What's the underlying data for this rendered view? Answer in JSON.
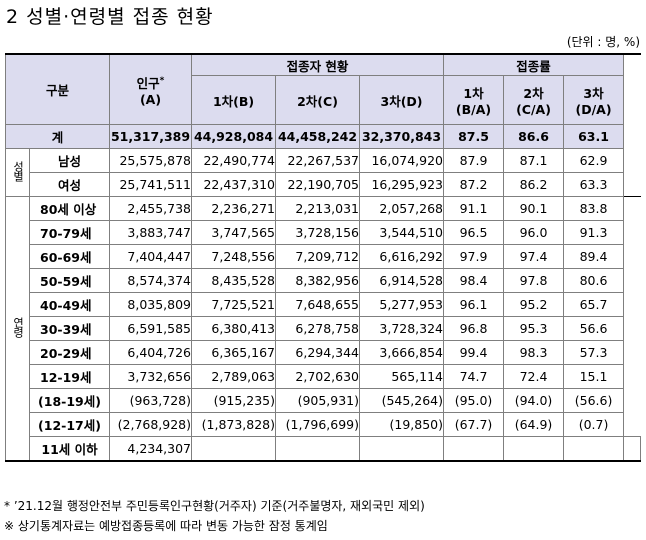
{
  "title": "2 성별·연령별 접종 현황",
  "unit": "(단위 : 명, %)",
  "headers": {
    "category": "구분",
    "population_line1": "인구",
    "population_sup": "*",
    "population_line2": "(A)",
    "vaccinated_group": "접종자 현황",
    "dose1": "1차(B)",
    "dose2": "2차(C)",
    "dose3": "3차(D)",
    "rate_group": "접종률",
    "rate1_line1": "1차",
    "rate1_line2": "(B/A)",
    "rate2_line1": "2차",
    "rate2_line2": "(C/A)",
    "rate3_line1": "3차",
    "rate3_line2": "(D/A)"
  },
  "groups": {
    "sex": "성별",
    "age": "연령"
  },
  "total": {
    "label": "계",
    "pop": "51,317,389",
    "d1": "44,928,084",
    "d2": "44,458,242",
    "d3": "32,370,843",
    "r1": "87.5",
    "r2": "86.6",
    "r3": "63.1"
  },
  "sex_rows": [
    {
      "label": "남성",
      "pop": "25,575,878",
      "d1": "22,490,774",
      "d2": "22,267,537",
      "d3": "16,074,920",
      "r1": "87.9",
      "r2": "87.1",
      "r3": "62.9"
    },
    {
      "label": "여성",
      "pop": "25,741,511",
      "d1": "22,437,310",
      "d2": "22,190,705",
      "d3": "16,295,923",
      "r1": "87.2",
      "r2": "86.2",
      "r3": "63.3"
    }
  ],
  "age_rows": [
    {
      "label": "80세 이상",
      "pop": "2,455,738",
      "d1": "2,236,271",
      "d2": "2,213,031",
      "d3": "2,057,268",
      "r1": "91.1",
      "r2": "90.1",
      "r3": "83.8"
    },
    {
      "label": "70-79세",
      "pop": "3,883,747",
      "d1": "3,747,565",
      "d2": "3,728,156",
      "d3": "3,544,510",
      "r1": "96.5",
      "r2": "96.0",
      "r3": "91.3"
    },
    {
      "label": "60-69세",
      "pop": "7,404,447",
      "d1": "7,248,556",
      "d2": "7,209,712",
      "d3": "6,616,292",
      "r1": "97.9",
      "r2": "97.4",
      "r3": "89.4"
    },
    {
      "label": "50-59세",
      "pop": "8,574,374",
      "d1": "8,435,528",
      "d2": "8,382,956",
      "d3": "6,914,528",
      "r1": "98.4",
      "r2": "97.8",
      "r3": "80.6"
    },
    {
      "label": "40-49세",
      "pop": "8,035,809",
      "d1": "7,725,521",
      "d2": "7,648,655",
      "d3": "5,277,953",
      "r1": "96.1",
      "r2": "95.2",
      "r3": "65.7"
    },
    {
      "label": "30-39세",
      "pop": "6,591,585",
      "d1": "6,380,413",
      "d2": "6,278,758",
      "d3": "3,728,324",
      "r1": "96.8",
      "r2": "95.3",
      "r3": "56.6"
    },
    {
      "label": "20-29세",
      "pop": "6,404,726",
      "d1": "6,365,167",
      "d2": "6,294,344",
      "d3": "3,666,854",
      "r1": "99.4",
      "r2": "98.3",
      "r3": "57.3"
    },
    {
      "label": "12-19세",
      "pop": "3,732,656",
      "d1": "2,789,063",
      "d2": "2,702,630",
      "d3": "565,114",
      "r1": "74.7",
      "r2": "72.4",
      "r3": "15.1"
    }
  ],
  "sub_rows": [
    {
      "label": "(18-19세)",
      "pop": "(963,728)",
      "d1": "(915,235)",
      "d2": "(905,931)",
      "d3": "(545,264)",
      "r1": "(95.0)",
      "r2": "(94.0)",
      "r3": "(56.6)"
    },
    {
      "label": "(12-17세)",
      "pop": "(2,768,928)",
      "d1": "(1,873,828)",
      "d2": "(1,796,699)",
      "d3": "(19,850)",
      "r1": "(67.7)",
      "r2": "(64.9)",
      "r3": "(0.7)"
    }
  ],
  "under11": {
    "label": "11세 이하",
    "pop": "4,234,307"
  },
  "notes": [
    "* ’21.12월 행정안전부 주민등록인구현황(거주자) 기준(거주불명자, 재외국민 제외)",
    "※ 상기통계자료는 예방접종등록에 따라 변동 가능한 잠정 통계임"
  ]
}
